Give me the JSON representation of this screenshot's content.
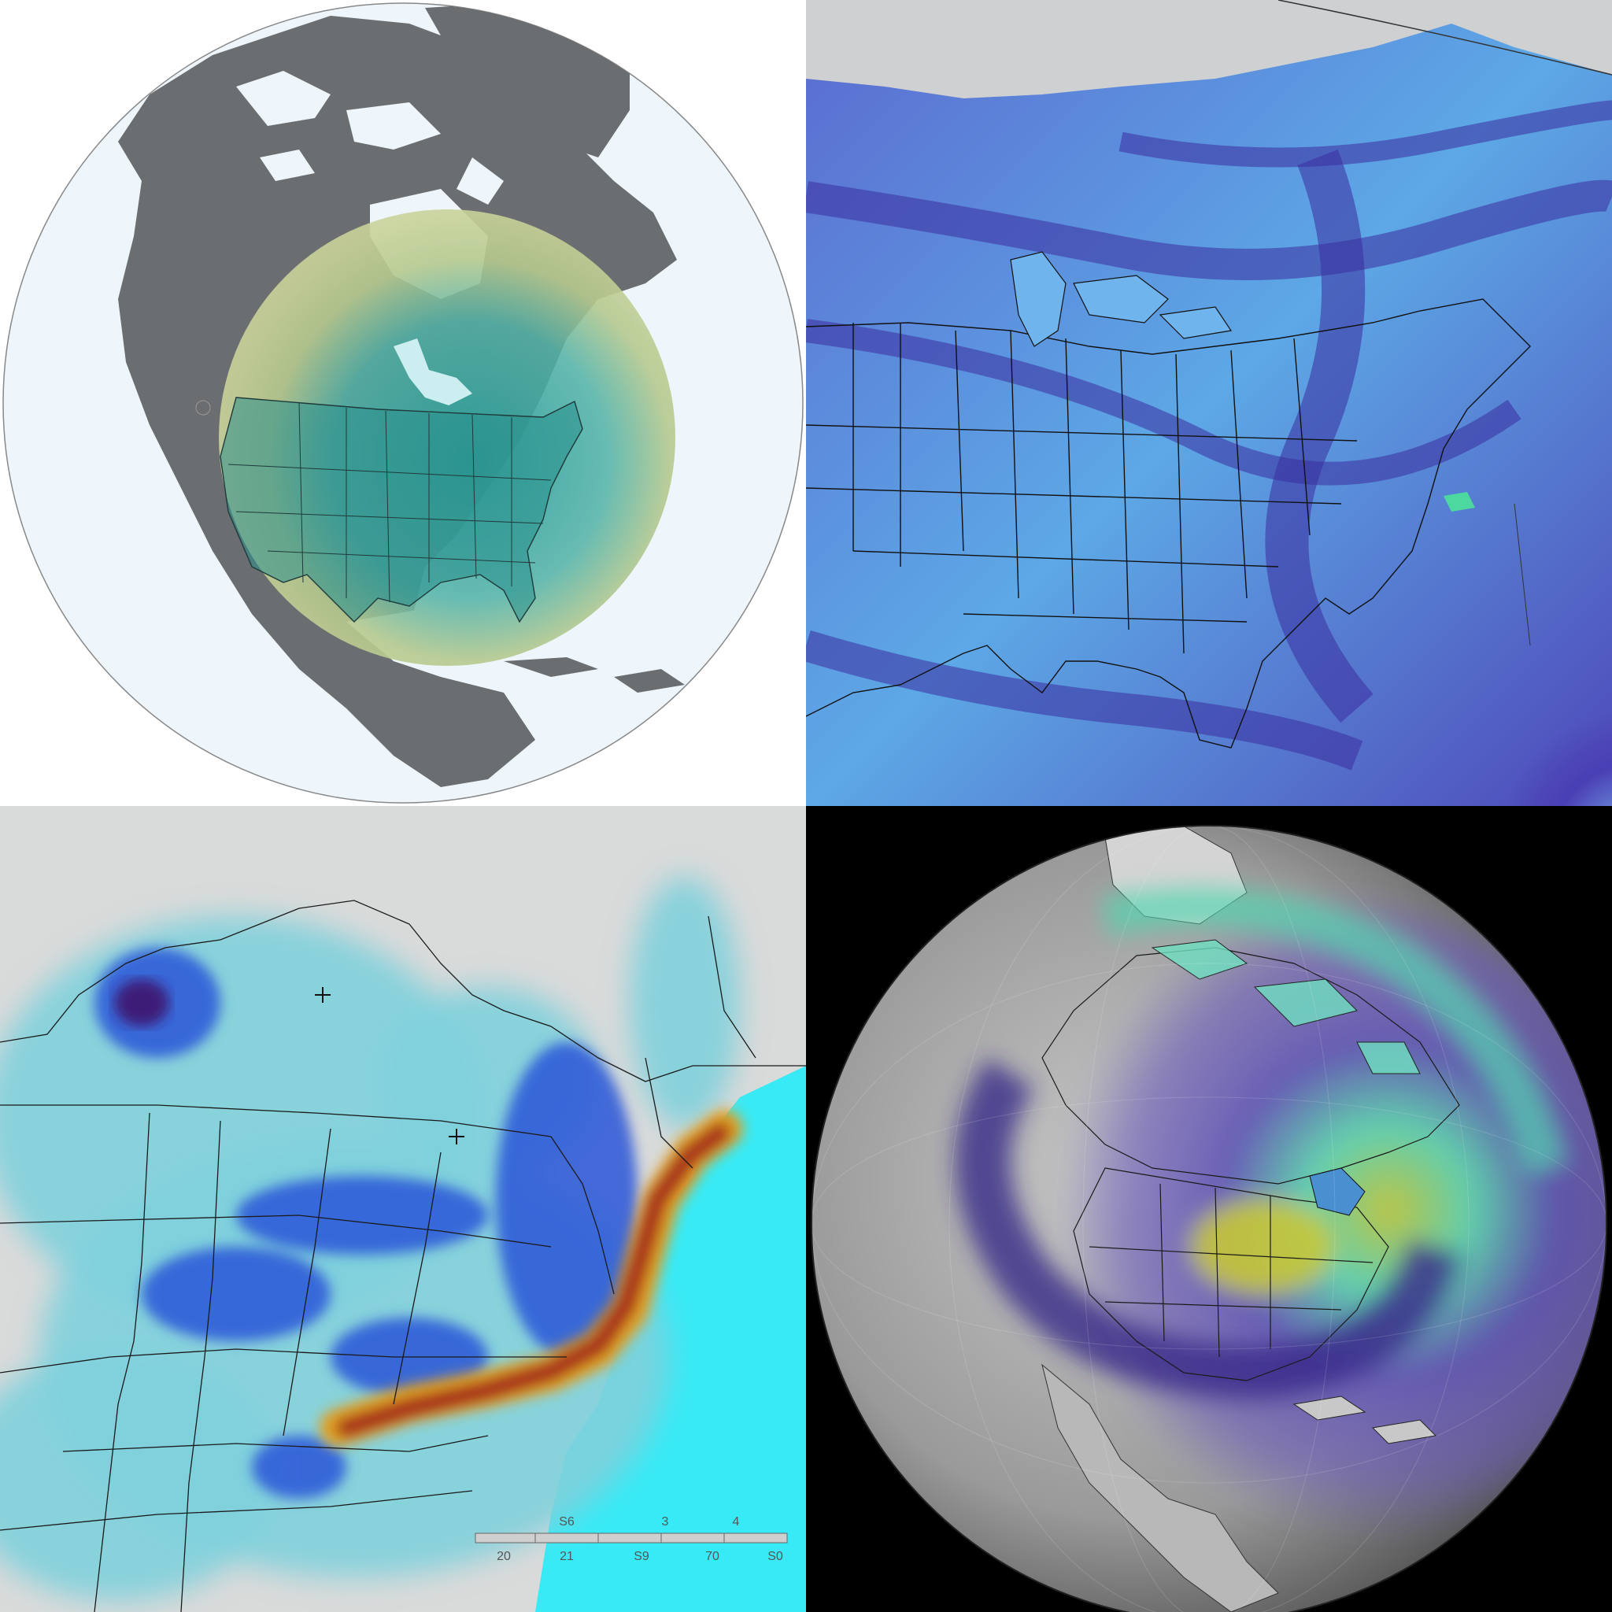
{
  "panels": [
    {
      "id": "globe-overlay-map"
    },
    {
      "id": "jet-stream-map"
    },
    {
      "id": "precipitation-heatmap"
    },
    {
      "id": "globe-atmosphere-map"
    }
  ],
  "legend": {
    "top_labels": [
      "S6",
      "3",
      "4"
    ],
    "bottom_labels": [
      "20",
      "21",
      "S9",
      "70",
      "S0"
    ]
  },
  "colors": {
    "land_gray": "#6b6e70",
    "ocean_pale": "#eef6fb",
    "overlay_olive": "#c9d39a",
    "teal": "#2b9e9a",
    "jet_purple": "#4a3fb5",
    "jet_blue": "#5aa0e0",
    "cyan_ocean": "#38eaf6",
    "heat_red": "#a8301e",
    "heat_orange": "#e07a1e",
    "heat_blue": "#2a56d8"
  }
}
